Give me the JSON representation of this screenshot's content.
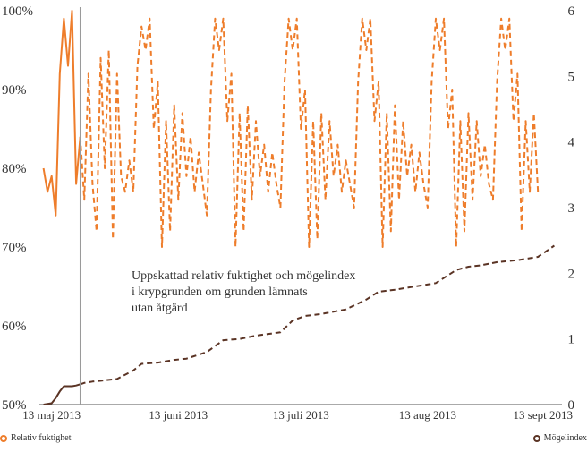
{
  "chart_data": {
    "type": "line",
    "annotation": {
      "lines": [
        "Uppskattad relativ fuktighet och mögelindex",
        "i krypgrunden om grunden lämnats",
        "utan åtgärd"
      ],
      "date": "2013-05-20"
    },
    "x_ticks": [
      "13 maj 2013",
      "13 juni 2013",
      "13 juli 2013",
      "13 aug 2013",
      "13 sept 2013"
    ],
    "x_tick_dates": [
      "2013-05-13",
      "2013-06-13",
      "2013-07-13",
      "2013-08-13",
      "2013-09-13"
    ],
    "xlim": [
      "2013-05-10",
      "2013-09-14"
    ],
    "y_left": {
      "ticks": [
        "50%",
        "60%",
        "70%",
        "80%",
        "90%",
        "100%"
      ],
      "values": [
        50,
        60,
        70,
        80,
        90,
        100
      ],
      "ylim": [
        50,
        100
      ]
    },
    "y_right": {
      "ticks": [
        "0",
        "1",
        "2",
        "3",
        "4",
        "5",
        "6"
      ],
      "values": [
        0,
        1,
        2,
        3,
        4,
        5,
        6
      ],
      "ylim": [
        0,
        6
      ]
    },
    "series": [
      {
        "name": "Relativ fuktighet",
        "axis": "left",
        "color": "#ee7d2b",
        "style": "solid until annotation date, dashed after",
        "points": [
          [
            "2013-05-11",
            80
          ],
          [
            "2013-05-12",
            77
          ],
          [
            "2013-05-13",
            79
          ],
          [
            "2013-05-14",
            74
          ],
          [
            "2013-05-15",
            92
          ],
          [
            "2013-05-16",
            99
          ],
          [
            "2013-05-17",
            93
          ],
          [
            "2013-05-18",
            100
          ],
          [
            "2013-05-19",
            78
          ],
          [
            "2013-05-20",
            84
          ],
          [
            "2013-05-21",
            76
          ],
          [
            "2013-05-22",
            92
          ],
          [
            "2013-05-23",
            78
          ],
          [
            "2013-05-24",
            72
          ],
          [
            "2013-05-25",
            94
          ],
          [
            "2013-05-26",
            80
          ],
          [
            "2013-05-27",
            95
          ],
          [
            "2013-05-28",
            71
          ],
          [
            "2013-05-29",
            92
          ],
          [
            "2013-05-30",
            79
          ],
          [
            "2013-05-31",
            77
          ],
          [
            "2013-06-01",
            81
          ],
          [
            "2013-06-02",
            77
          ],
          [
            "2013-06-03",
            93
          ],
          [
            "2013-06-04",
            98
          ],
          [
            "2013-06-05",
            95
          ],
          [
            "2013-06-06",
            99
          ],
          [
            "2013-06-07",
            85
          ],
          [
            "2013-06-08",
            91
          ],
          [
            "2013-06-09",
            70
          ],
          [
            "2013-06-10",
            86
          ],
          [
            "2013-06-11",
            72
          ],
          [
            "2013-06-12",
            88
          ],
          [
            "2013-06-13",
            76
          ],
          [
            "2013-06-14",
            87
          ],
          [
            "2013-06-15",
            79
          ],
          [
            "2013-06-16",
            84
          ],
          [
            "2013-06-17",
            77
          ],
          [
            "2013-06-18",
            82
          ],
          [
            "2013-06-19",
            78
          ],
          [
            "2013-06-20",
            74
          ],
          [
            "2013-06-21",
            90
          ],
          [
            "2013-06-22",
            99
          ],
          [
            "2013-06-23",
            95
          ],
          [
            "2013-06-24",
            99
          ],
          [
            "2013-06-25",
            86
          ],
          [
            "2013-06-26",
            92
          ],
          [
            "2013-06-27",
            70
          ],
          [
            "2013-06-28",
            87
          ],
          [
            "2013-06-29",
            72
          ],
          [
            "2013-06-30",
            88
          ],
          [
            "2013-07-01",
            76
          ],
          [
            "2013-07-02",
            86
          ],
          [
            "2013-07-03",
            79
          ],
          [
            "2013-07-04",
            83
          ],
          [
            "2013-07-05",
            77
          ],
          [
            "2013-07-06",
            82
          ],
          [
            "2013-07-07",
            78
          ],
          [
            "2013-07-08",
            75
          ],
          [
            "2013-07-09",
            91
          ],
          [
            "2013-07-10",
            99
          ],
          [
            "2013-07-11",
            95
          ],
          [
            "2013-07-12",
            99
          ],
          [
            "2013-07-13",
            85
          ],
          [
            "2013-07-14",
            90
          ],
          [
            "2013-07-15",
            70
          ],
          [
            "2013-07-16",
            86
          ],
          [
            "2013-07-17",
            71
          ],
          [
            "2013-07-18",
            87
          ],
          [
            "2013-07-19",
            76
          ],
          [
            "2013-07-20",
            86
          ],
          [
            "2013-07-21",
            79
          ],
          [
            "2013-07-22",
            83
          ],
          [
            "2013-07-23",
            77
          ],
          [
            "2013-07-24",
            81
          ],
          [
            "2013-07-25",
            78
          ],
          [
            "2013-07-26",
            75
          ],
          [
            "2013-07-27",
            91
          ],
          [
            "2013-07-28",
            99
          ],
          [
            "2013-07-29",
            95
          ],
          [
            "2013-07-30",
            99
          ],
          [
            "2013-07-31",
            86
          ],
          [
            "2013-08-01",
            91
          ],
          [
            "2013-08-02",
            70
          ],
          [
            "2013-08-03",
            87
          ],
          [
            "2013-08-04",
            72
          ],
          [
            "2013-08-05",
            88
          ],
          [
            "2013-08-06",
            76
          ],
          [
            "2013-08-07",
            86
          ],
          [
            "2013-08-08",
            79
          ],
          [
            "2013-08-09",
            83
          ],
          [
            "2013-08-10",
            77
          ],
          [
            "2013-08-11",
            82
          ],
          [
            "2013-08-12",
            78
          ],
          [
            "2013-08-13",
            75
          ],
          [
            "2013-08-14",
            91
          ],
          [
            "2013-08-15",
            99
          ],
          [
            "2013-08-16",
            95
          ],
          [
            "2013-08-17",
            99
          ],
          [
            "2013-08-18",
            85
          ],
          [
            "2013-08-19",
            90
          ],
          [
            "2013-08-20",
            70
          ],
          [
            "2013-08-21",
            86
          ],
          [
            "2013-08-22",
            72
          ],
          [
            "2013-08-23",
            87
          ],
          [
            "2013-08-24",
            76
          ],
          [
            "2013-08-25",
            86
          ],
          [
            "2013-08-26",
            79
          ],
          [
            "2013-08-27",
            83
          ],
          [
            "2013-08-28",
            78
          ],
          [
            "2013-08-29",
            76
          ],
          [
            "2013-08-30",
            91
          ],
          [
            "2013-08-31",
            99
          ],
          [
            "2013-09-01",
            95
          ],
          [
            "2013-09-02",
            99
          ],
          [
            "2013-09-03",
            86
          ],
          [
            "2013-09-04",
            92
          ],
          [
            "2013-09-05",
            72
          ],
          [
            "2013-09-06",
            86
          ],
          [
            "2013-09-07",
            77
          ],
          [
            "2013-09-08",
            87
          ],
          [
            "2013-09-09",
            77
          ]
        ]
      },
      {
        "name": "Mögelindex",
        "axis": "right",
        "color": "#5a3324",
        "style": "solid until annotation date, dashed after",
        "points": [
          [
            "2013-05-11",
            0
          ],
          [
            "2013-05-13",
            0.02
          ],
          [
            "2013-05-14",
            0.1
          ],
          [
            "2013-05-15",
            0.2
          ],
          [
            "2013-05-16",
            0.28
          ],
          [
            "2013-05-17",
            0.28
          ],
          [
            "2013-05-18",
            0.28
          ],
          [
            "2013-05-19",
            0.29
          ],
          [
            "2013-05-20",
            0.31
          ],
          [
            "2013-05-21",
            0.33
          ],
          [
            "2013-05-22",
            0.34
          ],
          [
            "2013-05-23",
            0.35
          ],
          [
            "2013-05-26",
            0.37
          ],
          [
            "2013-05-29",
            0.39
          ],
          [
            "2013-06-02",
            0.52
          ],
          [
            "2013-06-04",
            0.62
          ],
          [
            "2013-06-08",
            0.64
          ],
          [
            "2013-06-12",
            0.68
          ],
          [
            "2013-06-15",
            0.7
          ],
          [
            "2013-06-20",
            0.8
          ],
          [
            "2013-06-24",
            0.98
          ],
          [
            "2013-06-28",
            1.0
          ],
          [
            "2013-07-02",
            1.05
          ],
          [
            "2013-07-08",
            1.1
          ],
          [
            "2013-07-11",
            1.28
          ],
          [
            "2013-07-14",
            1.35
          ],
          [
            "2013-07-18",
            1.38
          ],
          [
            "2013-07-24",
            1.45
          ],
          [
            "2013-07-29",
            1.6
          ],
          [
            "2013-08-01",
            1.72
          ],
          [
            "2013-08-05",
            1.75
          ],
          [
            "2013-08-10",
            1.8
          ],
          [
            "2013-08-15",
            1.85
          ],
          [
            "2013-08-20",
            2.05
          ],
          [
            "2013-08-23",
            2.1
          ],
          [
            "2013-08-26",
            2.12
          ],
          [
            "2013-08-30",
            2.17
          ],
          [
            "2013-09-04",
            2.2
          ],
          [
            "2013-09-09",
            2.25
          ],
          [
            "2013-09-13",
            2.42
          ]
        ]
      }
    ],
    "legend": {
      "left": "Relativ fuktighet",
      "right": "Mögelindex",
      "placement": "bottom"
    }
  }
}
